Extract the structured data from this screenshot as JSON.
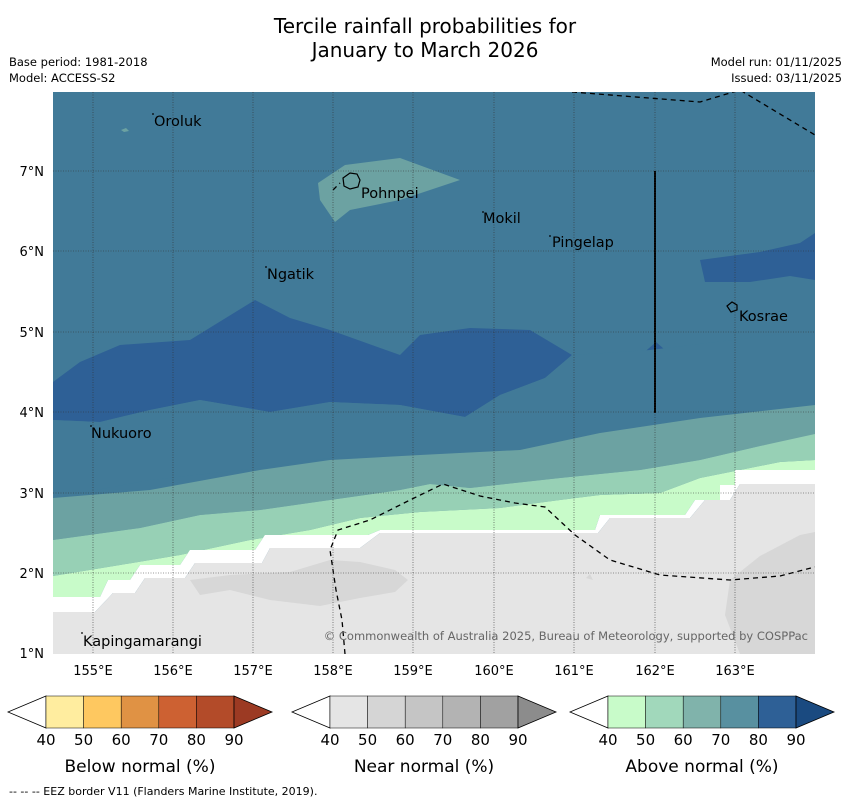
{
  "header": {
    "title_line1": "Tercile rainfall probabilities for",
    "title_line2": "January to March 2026",
    "base_period": "Base period: 1981-2018",
    "model": "Model: ACCESS-S2",
    "model_run": "Model run: 01/11/2025",
    "issued": "Issued: 03/11/2025"
  },
  "map": {
    "lon_ticks": [
      "155°E",
      "156°E",
      "157°E",
      "158°E",
      "159°E",
      "160°E",
      "161°E",
      "162°E",
      "163°E"
    ],
    "lat_ticks": [
      "7°N",
      "6°N",
      "5°N",
      "4°N",
      "3°N",
      "2°N",
      "1°N"
    ],
    "places": {
      "oroluk": "Oroluk",
      "pohnpei": "Pohnpei",
      "mokil": "Mokil",
      "pingelap": "Pingelap",
      "ngatik": "Ngatik",
      "kosrae": "Kosrae",
      "nukuoro": "Nukuoro",
      "kapingamarangi": "Kapingamarangi"
    },
    "copyright": "© Commonwealth of Australia 2025, Bureau of Meteorology, supported by COSPPac",
    "colors": {
      "above_70": "#417a98",
      "above_80": "#2e6096",
      "above_60": "#6ca2a2",
      "above_50": "#97d0b5",
      "above_40": "#c8fbc9",
      "near_40": "#e5e5e5",
      "near_50": "#d7d7d7"
    }
  },
  "legends": {
    "below": {
      "label": "Below normal (%)",
      "ticks": [
        "40",
        "50",
        "60",
        "70",
        "80",
        "90"
      ],
      "colors": [
        "#ffffff",
        "#ffed9f",
        "#fec860",
        "#e09244",
        "#cd6132",
        "#b34b29",
        "#9c3a23"
      ]
    },
    "near": {
      "label": "Near normal (%)",
      "ticks": [
        "40",
        "50",
        "60",
        "70",
        "80",
        "90"
      ],
      "colors": [
        "#ffffff",
        "#e5e5e5",
        "#d5d5d5",
        "#c5c5c5",
        "#b3b3b3",
        "#a1a1a1",
        "#8c8c8c"
      ]
    },
    "above": {
      "label": "Above normal (%)",
      "ticks": [
        "40",
        "50",
        "60",
        "70",
        "80",
        "90"
      ],
      "colors": [
        "#ffffff",
        "#c8fbc9",
        "#a1d8bb",
        "#80b3ab",
        "#5890a0",
        "#2e6096",
        "#1a4a80"
      ]
    }
  },
  "footer": {
    "eez": "--  --  -- EEZ border V11 (Flanders Marine Institute, 2019)."
  }
}
